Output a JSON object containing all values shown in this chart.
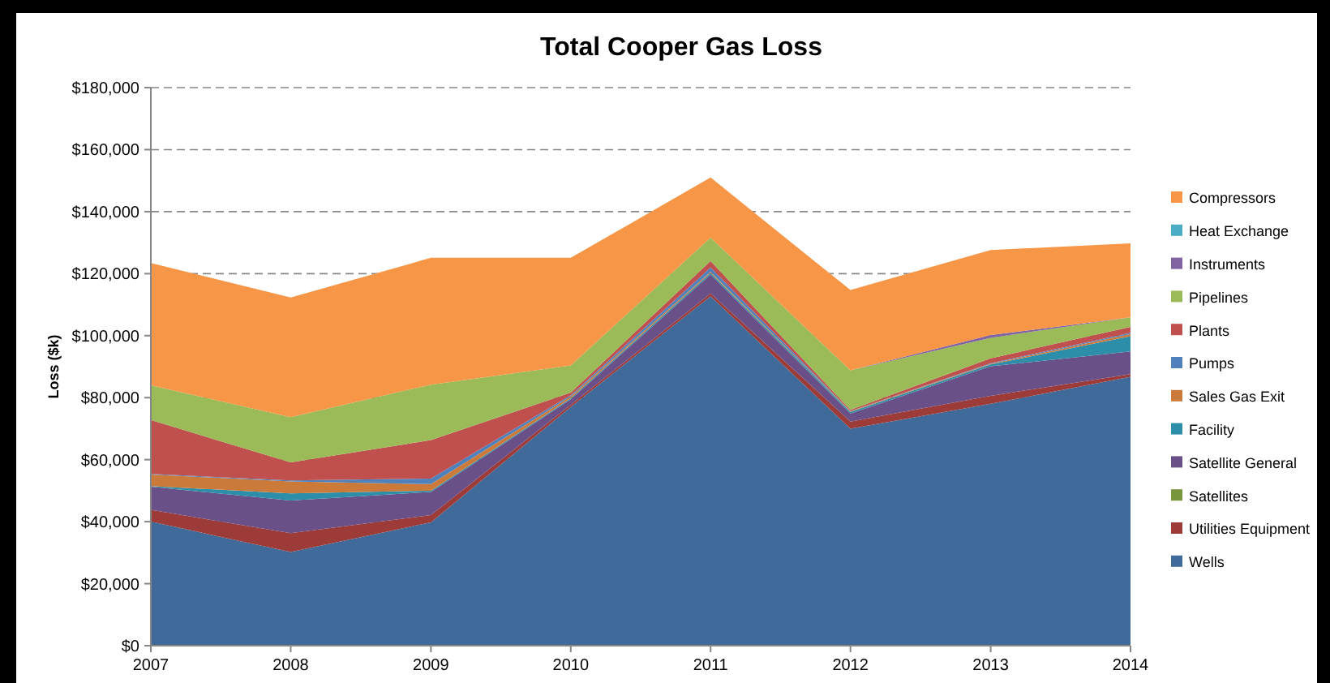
{
  "chart_data": {
    "type": "area",
    "stacked": true,
    "title": "Total Cooper Gas Loss",
    "ylabel": "Loss ($k)",
    "x": [
      "2007",
      "2008",
      "2009",
      "2010",
      "2011",
      "2012",
      "2013",
      "2014"
    ],
    "xticks": [
      {
        "value": "2007",
        "label": "2007"
      },
      {
        "value": "2008",
        "label": "2008"
      },
      {
        "value": "2009",
        "label": "2009"
      },
      {
        "value": "2010",
        "label": "2010"
      },
      {
        "value": "2011",
        "label": "2011"
      },
      {
        "value": "2012",
        "label": "2012"
      },
      {
        "value": "2013",
        "label": "2013"
      },
      {
        "value": "2014",
        "label": "2014"
      }
    ],
    "xlim": [
      "2007",
      "2014"
    ],
    "ylim": [
      0,
      180000
    ],
    "yticks": [
      {
        "value": 0,
        "label": "$0"
      },
      {
        "value": 20000,
        "label": "$20,000"
      },
      {
        "value": 40000,
        "label": "$40,000"
      },
      {
        "value": 60000,
        "label": "$60,000"
      },
      {
        "value": 80000,
        "label": "$80,000"
      },
      {
        "value": 100000,
        "label": "$100,000"
      },
      {
        "value": 120000,
        "label": "$120,000"
      },
      {
        "value": 140000,
        "label": "$140,000"
      },
      {
        "value": 160000,
        "label": "$160,000"
      },
      {
        "value": 180000,
        "label": "$180,000"
      }
    ],
    "grid": "y",
    "legend": "right",
    "series": [
      {
        "name": "Wells",
        "color": "#3f6a9a",
        "values": [
          40000,
          30200,
          39800,
          77000,
          112700,
          70000,
          78000,
          86700
        ]
      },
      {
        "name": "Utilities Equipment",
        "color": "#9c3b38",
        "values": [
          3800,
          6100,
          2300,
          700,
          900,
          2300,
          2600,
          900
        ]
      },
      {
        "name": "Satellites",
        "color": "#78963b",
        "values": [
          null,
          null,
          null,
          null,
          null,
          null,
          null,
          null
        ]
      },
      {
        "name": "Satellite General",
        "color": "#6a5088",
        "values": [
          7500,
          10500,
          7500,
          1800,
          6100,
          2600,
          9500,
          7300
        ]
      },
      {
        "name": "Facility",
        "color": "#2c8ea8",
        "values": [
          200,
          2300,
          400,
          300,
          500,
          500,
          600,
          4900
        ]
      },
      {
        "name": "Sales Gas Exit",
        "color": "#cc7a3a",
        "values": [
          3700,
          3900,
          2100,
          600,
          400,
          200,
          200,
          700
        ]
      },
      {
        "name": "Pumps",
        "color": "#4f81bd",
        "values": [
          200,
          300,
          1800,
          400,
          1400,
          100,
          200,
          400
        ]
      },
      {
        "name": "Plants",
        "color": "#c0504d",
        "values": [
          17400,
          5800,
          12400,
          800,
          2100,
          400,
          1600,
          1900
        ]
      },
      {
        "name": "Pipelines",
        "color": "#9bbb59",
        "values": [
          11200,
          14600,
          17900,
          8800,
          7500,
          12700,
          6600,
          3100
        ]
      },
      {
        "name": "Instruments",
        "color": "#8064a2",
        "values": [
          0,
          0,
          0,
          0,
          0,
          0,
          900,
          0
        ]
      },
      {
        "name": "Heat Exchange",
        "color": "#4bacc6",
        "values": [
          null,
          null,
          null,
          null,
          null,
          null,
          null,
          null
        ]
      },
      {
        "name": "Compressors",
        "color": "#f79646",
        "values": [
          39400,
          38600,
          40900,
          34700,
          19400,
          25900,
          27400,
          23900
        ]
      }
    ]
  }
}
